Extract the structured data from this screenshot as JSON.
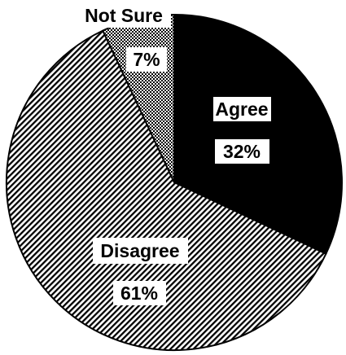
{
  "chart_data": {
    "type": "pie",
    "slices": [
      {
        "label": "Agree",
        "value_label": "32%",
        "value": 32,
        "fill": "solid"
      },
      {
        "label": "Disagree",
        "value_label": "61%",
        "value": 61,
        "fill": "diagonal-hatch"
      },
      {
        "label": "Not Sure",
        "value_label": "7%",
        "value": 7,
        "fill": "stipple"
      }
    ],
    "colors": {
      "ink": "#000000",
      "paper": "#ffffff"
    }
  }
}
